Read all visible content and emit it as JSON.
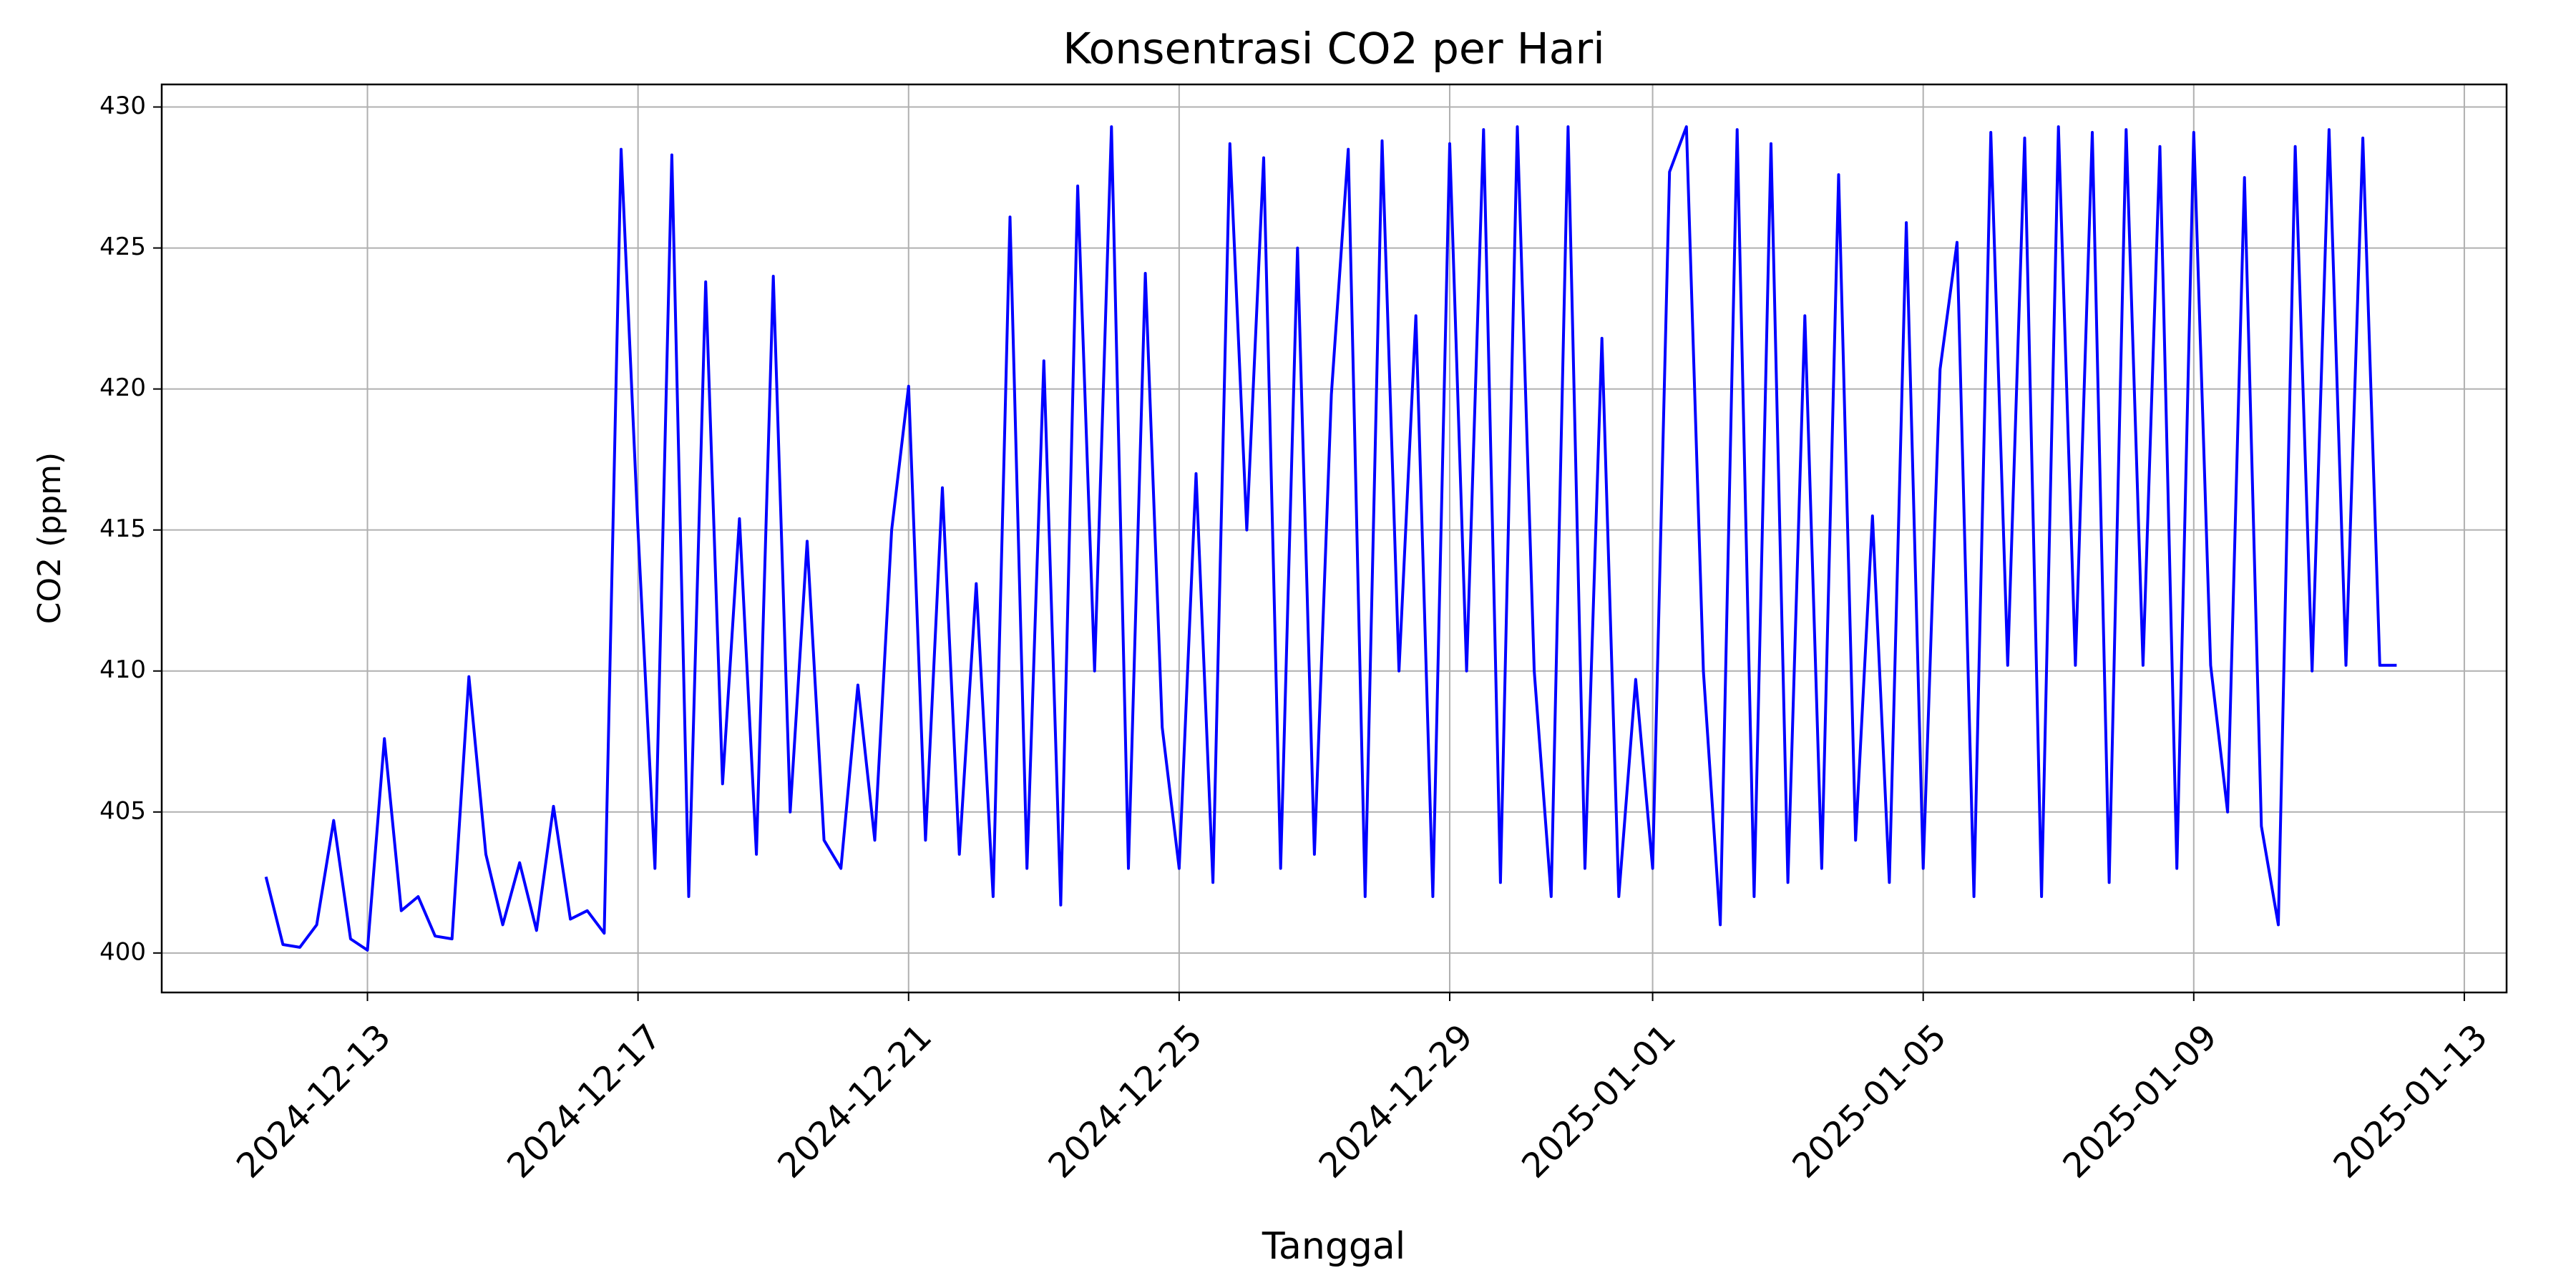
{
  "chart_data": {
    "type": "line",
    "title": "Konsentrasi CO2 per Hari",
    "x_label": "Tanggal",
    "y_label": "CO2 (ppm)",
    "color": "#0000ff",
    "grid": true,
    "xlim": [
      "2024-12-09T23:00",
      "2025-01-13T15:00"
    ],
    "xticks": [
      "2024-12-13",
      "2024-12-17",
      "2024-12-21",
      "2024-12-25",
      "2024-12-29",
      "2025-01-01",
      "2025-01-05",
      "2025-01-09",
      "2025-01-13"
    ],
    "ylim": [
      398.6,
      430.8
    ],
    "yticks": [
      400,
      405,
      410,
      415,
      420,
      425,
      430
    ],
    "x": [
      "2024-12-11T12:00",
      "2024-12-11T18:00",
      "2024-12-12T00:00",
      "2024-12-12T06:00",
      "2024-12-12T12:00",
      "2024-12-12T18:00",
      "2024-12-13T00:00",
      "2024-12-13T06:00",
      "2024-12-13T12:00",
      "2024-12-13T18:00",
      "2024-12-14T00:00",
      "2024-12-14T06:00",
      "2024-12-14T12:00",
      "2024-12-14T18:00",
      "2024-12-15T00:00",
      "2024-12-15T06:00",
      "2024-12-15T12:00",
      "2024-12-15T18:00",
      "2024-12-16T00:00",
      "2024-12-16T06:00",
      "2024-12-16T12:00",
      "2024-12-16T18:00",
      "2024-12-17T00:00",
      "2024-12-17T06:00",
      "2024-12-17T12:00",
      "2024-12-17T18:00",
      "2024-12-18T00:00",
      "2024-12-18T06:00",
      "2024-12-18T12:00",
      "2024-12-18T18:00",
      "2024-12-19T00:00",
      "2024-12-19T06:00",
      "2024-12-19T12:00",
      "2024-12-19T18:00",
      "2024-12-20T00:00",
      "2024-12-20T06:00",
      "2024-12-20T12:00",
      "2024-12-20T18:00",
      "2024-12-21T00:00",
      "2024-12-21T06:00",
      "2024-12-21T12:00",
      "2024-12-21T18:00",
      "2024-12-22T00:00",
      "2024-12-22T06:00",
      "2024-12-22T12:00",
      "2024-12-22T18:00",
      "2024-12-23T00:00",
      "2024-12-23T06:00",
      "2024-12-23T12:00",
      "2024-12-23T18:00",
      "2024-12-24T00:00",
      "2024-12-24T06:00",
      "2024-12-24T12:00",
      "2024-12-24T18:00",
      "2024-12-25T00:00",
      "2024-12-25T06:00",
      "2024-12-25T12:00",
      "2024-12-25T18:00",
      "2024-12-26T00:00",
      "2024-12-26T06:00",
      "2024-12-26T12:00",
      "2024-12-26T18:00",
      "2024-12-27T00:00",
      "2024-12-27T06:00",
      "2024-12-27T12:00",
      "2024-12-27T18:00",
      "2024-12-28T00:00",
      "2024-12-28T06:00",
      "2024-12-28T12:00",
      "2024-12-28T18:00",
      "2024-12-29T00:00",
      "2024-12-29T06:00",
      "2024-12-29T12:00",
      "2024-12-29T18:00",
      "2024-12-30T00:00",
      "2024-12-30T06:00",
      "2024-12-30T12:00",
      "2024-12-30T18:00",
      "2024-12-31T00:00",
      "2024-12-31T06:00",
      "2024-12-31T12:00",
      "2024-12-31T18:00",
      "2025-01-01T00:00",
      "2025-01-01T06:00",
      "2025-01-01T12:00",
      "2025-01-01T18:00",
      "2025-01-02T00:00",
      "2025-01-02T06:00",
      "2025-01-02T12:00",
      "2025-01-02T18:00",
      "2025-01-03T00:00",
      "2025-01-03T06:00",
      "2025-01-03T12:00",
      "2025-01-03T18:00",
      "2025-01-04T00:00",
      "2025-01-04T06:00",
      "2025-01-04T12:00",
      "2025-01-04T18:00",
      "2025-01-05T00:00",
      "2025-01-05T06:00",
      "2025-01-05T12:00",
      "2025-01-05T18:00",
      "2025-01-06T00:00",
      "2025-01-06T06:00",
      "2025-01-06T12:00",
      "2025-01-06T18:00",
      "2025-01-07T00:00",
      "2025-01-07T06:00",
      "2025-01-07T12:00",
      "2025-01-07T18:00",
      "2025-01-08T00:00",
      "2025-01-08T06:00",
      "2025-01-08T12:00",
      "2025-01-08T18:00",
      "2025-01-09T00:00",
      "2025-01-09T06:00",
      "2025-01-09T12:00",
      "2025-01-09T18:00",
      "2025-01-10T00:00",
      "2025-01-10T06:00",
      "2025-01-10T12:00",
      "2025-01-10T18:00",
      "2025-01-11T00:00",
      "2025-01-11T06:00",
      "2025-01-11T12:00",
      "2025-01-11T18:00",
      "2025-01-12T00:00"
    ],
    "values": [
      402.7,
      400.3,
      400.2,
      401,
      404.7,
      400.5,
      400.1,
      407.6,
      401.5,
      402,
      400.6,
      400.5,
      409.8,
      403.5,
      401,
      403.2,
      400.8,
      405.2,
      401.2,
      401.5,
      400.7,
      428.5,
      415,
      403,
      428.3,
      402,
      423.8,
      406,
      415.4,
      403.5,
      424,
      405,
      414.6,
      404,
      403,
      409.5,
      404,
      415,
      420.1,
      404,
      416.5,
      403.5,
      413.1,
      402,
      426.1,
      403,
      421,
      401.7,
      427.2,
      410,
      429.3,
      403,
      424.1,
      408,
      403,
      417,
      402.5,
      428.7,
      415,
      428.2,
      403,
      425,
      403.5,
      419.8,
      428.5,
      402,
      428.8,
      410,
      422.6,
      402,
      428.7,
      410,
      429.2,
      402.5,
      429.3,
      410,
      402,
      429.3,
      403,
      421.8,
      402,
      409.7,
      403,
      427.7,
      429.3,
      410,
      401,
      429.2,
      402,
      428.7,
      402.5,
      422.6,
      403,
      427.6,
      404,
      415.5,
      402.5,
      425.9,
      403,
      420.7,
      425.2,
      402,
      429.1,
      410.2,
      428.9,
      402,
      429.3,
      410.2,
      429.1,
      402.5,
      429.2,
      410.2,
      428.6,
      403,
      429.1,
      410.2,
      405,
      427.5,
      404.5,
      401,
      428.6,
      410,
      429.2,
      410.2,
      428.9,
      410.2,
      410.2
    ]
  }
}
